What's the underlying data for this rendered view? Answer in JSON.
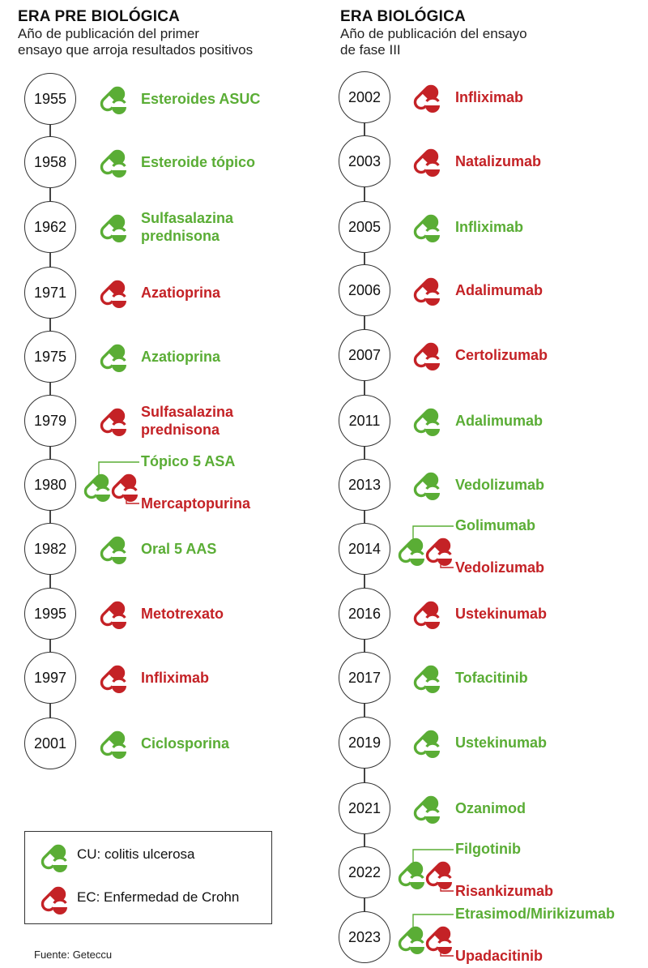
{
  "colors": {
    "cu": "#5aad35",
    "ec": "#c42226"
  },
  "pre": {
    "title": "ERA PRE BIOLÓGICA",
    "subtitle_l1": "Año de publicación del primer",
    "subtitle_l2": "ensayo que arroja resultados positivos",
    "items": [
      {
        "year": "1955",
        "drugs": [
          {
            "name": "Esteroides ASUC",
            "type": "cu"
          }
        ]
      },
      {
        "year": "1958",
        "drugs": [
          {
            "name": "Esteroide tópico",
            "type": "cu"
          }
        ]
      },
      {
        "year": "1962",
        "drugs": [
          {
            "name": "Sulfasalazina\nprednisona",
            "type": "cu"
          }
        ]
      },
      {
        "year": "1971",
        "drugs": [
          {
            "name": "Azatioprina",
            "type": "ec"
          }
        ]
      },
      {
        "year": "1975",
        "drugs": [
          {
            "name": "Azatioprina",
            "type": "cu"
          }
        ]
      },
      {
        "year": "1979",
        "drugs": [
          {
            "name": "Sulfasalazina\nprednisona",
            "type": "ec"
          }
        ]
      },
      {
        "year": "1980",
        "drugs": [
          {
            "name": "Tópico 5 ASA",
            "type": "cu"
          },
          {
            "name": "Mercaptopurina",
            "type": "ec"
          }
        ]
      },
      {
        "year": "1982",
        "drugs": [
          {
            "name": "Oral 5 AAS",
            "type": "cu"
          }
        ]
      },
      {
        "year": "1995",
        "drugs": [
          {
            "name": "Metotrexato",
            "type": "ec"
          }
        ]
      },
      {
        "year": "1997",
        "drugs": [
          {
            "name": "Infliximab",
            "type": "ec"
          }
        ]
      },
      {
        "year": "2001",
        "drugs": [
          {
            "name": "Ciclosporina",
            "type": "cu"
          }
        ]
      }
    ]
  },
  "bio": {
    "title": "ERA BIOLÓGICA",
    "subtitle_l1": "Año de publicación del ensayo",
    "subtitle_l2": "de fase III",
    "items": [
      {
        "year": "2002",
        "drugs": [
          {
            "name": "Infliximab",
            "type": "ec"
          }
        ]
      },
      {
        "year": "2003",
        "drugs": [
          {
            "name": "Natalizumab",
            "type": "ec"
          }
        ]
      },
      {
        "year": "2005",
        "drugs": [
          {
            "name": "Infliximab",
            "type": "cu"
          }
        ]
      },
      {
        "year": "2006",
        "drugs": [
          {
            "name": "Adalimumab",
            "type": "ec"
          }
        ]
      },
      {
        "year": "2007",
        "drugs": [
          {
            "name": "Certolizumab",
            "type": "ec"
          }
        ]
      },
      {
        "year": "2011",
        "drugs": [
          {
            "name": "Adalimumab",
            "type": "cu"
          }
        ]
      },
      {
        "year": "2013",
        "drugs": [
          {
            "name": "Vedolizumab",
            "type": "cu"
          }
        ]
      },
      {
        "year": "2014",
        "drugs": [
          {
            "name": "Golimumab",
            "type": "cu"
          },
          {
            "name": "Vedolizumab",
            "type": "ec"
          }
        ]
      },
      {
        "year": "2016",
        "drugs": [
          {
            "name": "Ustekinumab",
            "type": "ec"
          }
        ]
      },
      {
        "year": "2017",
        "drugs": [
          {
            "name": "Tofacitinib",
            "type": "cu"
          }
        ]
      },
      {
        "year": "2019",
        "drugs": [
          {
            "name": "Ustekinumab",
            "type": "cu"
          }
        ]
      },
      {
        "year": "2021",
        "drugs": [
          {
            "name": "Ozanimod",
            "type": "cu"
          }
        ]
      },
      {
        "year": "2022",
        "drugs": [
          {
            "name": "Filgotinib",
            "type": "cu"
          },
          {
            "name": "Risankizumab",
            "type": "ec"
          }
        ]
      },
      {
        "year": "2023",
        "drugs": [
          {
            "name": "Etrasimod/Mirikizumab",
            "type": "cu"
          },
          {
            "name": "Upadacitinib",
            "type": "ec"
          }
        ]
      }
    ]
  },
  "legend": {
    "cu_label": "CU: colitis ulcerosa",
    "ec_label": "EC: Enfermedad de Crohn",
    "cu_icon": "green-pill-icon",
    "ec_icon": "red-pill-icon"
  },
  "source": "Fuente: Geteccu"
}
